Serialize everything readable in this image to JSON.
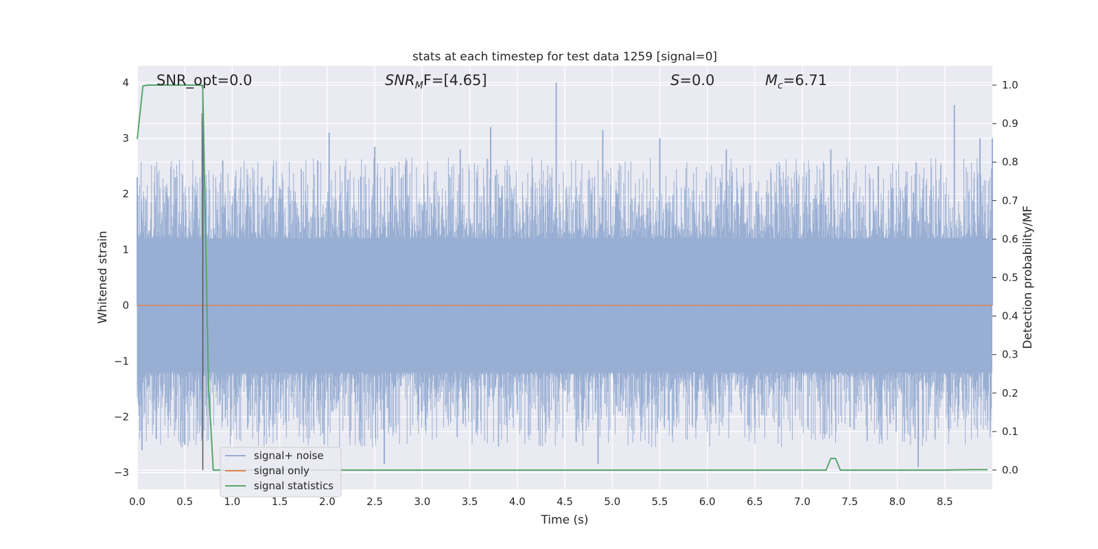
{
  "chart_data": {
    "type": "line",
    "title": "stats at each timestep for test data 1259 [signal=0]",
    "xlabel": "Time (s)",
    "ylabel": "Whitened strain",
    "ylabel_right": "Detection probability/MF",
    "xlim": [
      0.0,
      9.0
    ],
    "ylim": [
      -3.3,
      4.3
    ],
    "ylim_right": [
      -0.05,
      1.05
    ],
    "x_ticks": [
      "0.0",
      "0.5",
      "1.0",
      "1.5",
      "2.0",
      "2.5",
      "3.0",
      "3.5",
      "4.0",
      "4.5",
      "5.0",
      "5.5",
      "6.0",
      "6.5",
      "7.0",
      "7.5",
      "8.0",
      "8.5"
    ],
    "y_ticks": [
      "−3",
      "−2",
      "−1",
      "0",
      "1",
      "2",
      "3",
      "4"
    ],
    "y_right_ticks": [
      "0.0",
      "0.1",
      "0.2",
      "0.3",
      "0.4",
      "0.5",
      "0.6",
      "0.7",
      "0.8",
      "0.9",
      "1.0"
    ],
    "grid": true,
    "legend_position": "lower-left",
    "annotations": {
      "snr_opt": "SNR_opt=0.0",
      "snr_mf_base": "SNR",
      "snr_mf_sub": "M",
      "snr_mf_tail": "F=[4.65]",
      "s_var": "S",
      "s_val": "=0.0",
      "mc_var": "M",
      "mc_sub": "c",
      "mc_val": "=6.71"
    },
    "marker_line_x": 0.69,
    "series": [
      {
        "name": "signal+ noise",
        "color": "#98aed3",
        "axis": "left",
        "description_points": [
          {
            "x": 0.0,
            "y": 2.3
          },
          {
            "x": 0.05,
            "y": -2.6
          },
          {
            "x": 0.2,
            "y": -2.4
          },
          {
            "x": 0.4,
            "y": 2.3
          },
          {
            "x": 0.5,
            "y": -2.5
          },
          {
            "x": 0.68,
            "y": 3.45
          },
          {
            "x": 0.7,
            "y": 3.0
          },
          {
            "x": 0.9,
            "y": 2.6
          },
          {
            "x": 1.5,
            "y": 2.1
          },
          {
            "x": 1.9,
            "y": 2.6
          },
          {
            "x": 2.02,
            "y": 3.1
          },
          {
            "x": 2.5,
            "y": 2.85
          },
          {
            "x": 2.6,
            "y": -2.85
          },
          {
            "x": 3.4,
            "y": 2.8
          },
          {
            "x": 3.72,
            "y": 3.2
          },
          {
            "x": 4.41,
            "y": 4.0
          },
          {
            "x": 4.85,
            "y": -2.85
          },
          {
            "x": 4.9,
            "y": 3.15
          },
          {
            "x": 5.5,
            "y": 3.0
          },
          {
            "x": 6.2,
            "y": 2.8
          },
          {
            "x": 7.3,
            "y": 2.8
          },
          {
            "x": 7.8,
            "y": 2.5
          },
          {
            "x": 8.22,
            "y": -2.9
          },
          {
            "x": 8.6,
            "y": 3.6
          },
          {
            "x": 8.87,
            "y": 3.0
          },
          {
            "x": 9.0,
            "y": 3.0
          }
        ],
        "band_upper": 1.2,
        "band_lower": -1.2
      },
      {
        "name": "signal only",
        "color": "#dd8452",
        "axis": "left",
        "x": [
          0.0,
          9.0
        ],
        "y": [
          0.0,
          0.0
        ]
      },
      {
        "name": "signal statistics",
        "color": "#55a868",
        "axis": "right",
        "x": [
          0.0,
          0.06,
          0.12,
          0.2,
          0.4,
          0.6,
          0.68,
          0.69,
          0.75,
          0.8,
          0.85,
          1.0,
          2.0,
          3.0,
          4.0,
          5.0,
          6.0,
          7.0,
          7.25,
          7.3,
          7.35,
          7.4,
          7.5,
          8.0,
          8.5,
          8.8,
          8.95
        ],
        "y": [
          0.86,
          0.998,
          1.0,
          1.0,
          1.0,
          1.0,
          1.0,
          0.99,
          0.22,
          0.0,
          0.0,
          0.0,
          0.0,
          0.0,
          0.0,
          0.0,
          0.0,
          0.0,
          0.0,
          0.03,
          0.03,
          0.0,
          0.0,
          0.0,
          0.0,
          0.001,
          0.001
        ]
      }
    ]
  }
}
